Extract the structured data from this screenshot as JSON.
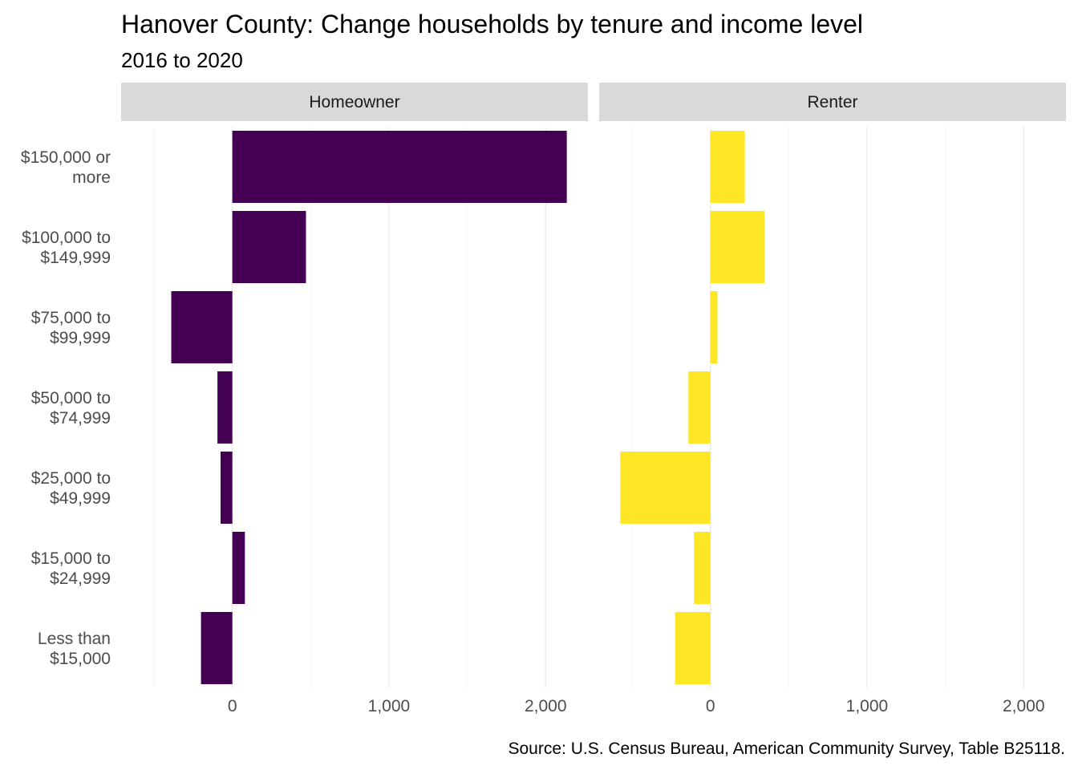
{
  "chart_data": {
    "type": "bar",
    "orientation": "horizontal",
    "title": "Hanover County: Change households by tenure and income level",
    "subtitle": "2016 to 2020",
    "caption": "Source: U.S. Census Bureau, American Community Survey, Table B25118.",
    "xlabel": "",
    "ylabel": "",
    "categories": [
      [
        "$150,000 or",
        "more"
      ],
      [
        "$100,000 to",
        "$149,999"
      ],
      [
        "$75,000 to",
        "$99,999"
      ],
      [
        "$50,000 to",
        "$74,999"
      ],
      [
        "$25,000 to",
        "$49,999"
      ],
      [
        "$15,000 to",
        "$24,999"
      ],
      [
        "Less than",
        "$15,000"
      ]
    ],
    "x_ticks": [
      0,
      1000,
      2000
    ],
    "x_tick_labels": [
      "0",
      "1,000",
      "2,000"
    ],
    "xlim": [
      -710,
      2270
    ],
    "grid": true,
    "legend": "none",
    "facets": [
      {
        "label": "Homeowner",
        "color": "#440154",
        "values": [
          2135,
          470,
          -390,
          -95,
          -75,
          80,
          -200
        ]
      },
      {
        "label": "Renter",
        "color": "#FDE725",
        "values": [
          220,
          345,
          45,
          -140,
          -575,
          -105,
          -225
        ]
      }
    ]
  }
}
